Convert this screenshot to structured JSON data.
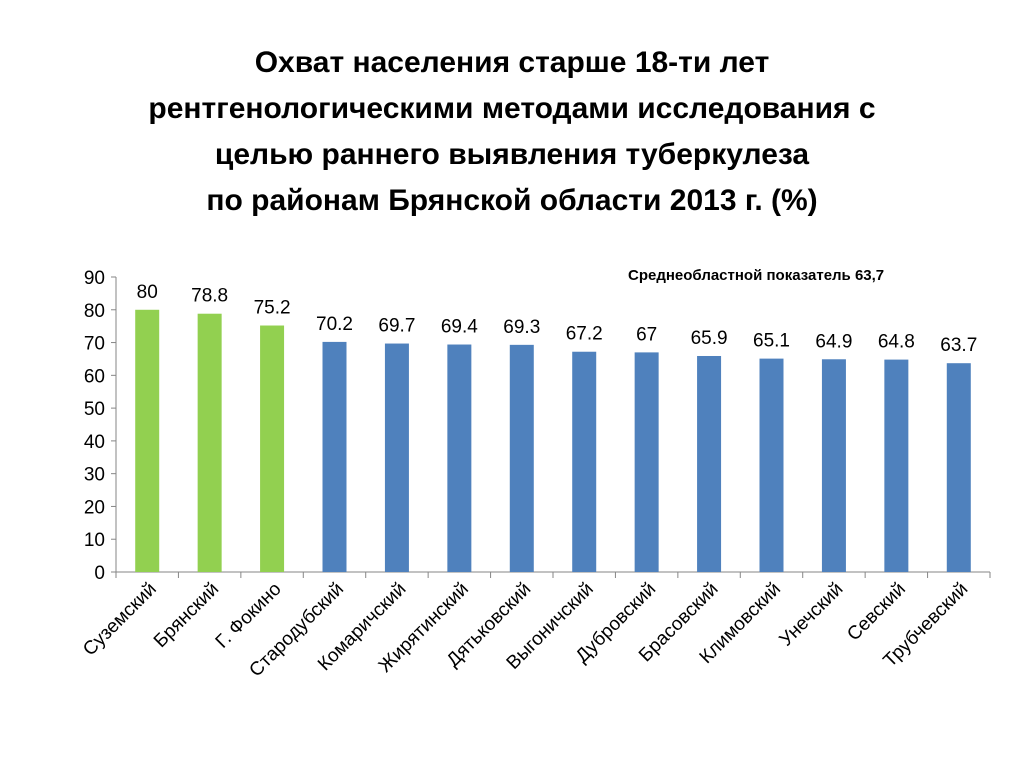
{
  "title_lines": [
    "Охват населения старше 18-ти лет",
    "рентгенологическими методами исследования с",
    "целью раннего выявления туберкулеза",
    "по районам Брянской области 2013 г. (%)"
  ],
  "note": "Среднеобластной показатель 63,7",
  "colors": {
    "above_avg": "#92d050",
    "default": "#4f81bd",
    "axis": "#868686"
  },
  "chart_data": {
    "type": "bar",
    "title": "Охват населения старше 18-ти лет рентгенологическими методами исследования с целью раннего выявления туберкулеза по районам Брянской области 2013 г. (%)",
    "categories": [
      "Суземский",
      "Брянский",
      "Г. Фокино",
      "Стародубский",
      "Комаричский",
      "Жирятинский",
      "Дятьковский",
      "Выгоничский",
      "Дубровский",
      "Брасовский",
      "Климовский",
      "Унечский",
      "Севский",
      "Трубчевский"
    ],
    "values": [
      80,
      78.8,
      75.2,
      70.2,
      69.7,
      69.4,
      69.3,
      67.2,
      67,
      65.9,
      65.1,
      64.9,
      64.8,
      63.7
    ],
    "data_labels": [
      "80",
      "78.8",
      "75.2",
      "70.2",
      "69.7",
      "69.4",
      "69.3",
      "67.2",
      "67",
      "65.9",
      "65.1",
      "64.9",
      "64.8",
      "63.7"
    ],
    "bar_colors": [
      "#92d050",
      "#92d050",
      "#92d050",
      "#4f81bd",
      "#4f81bd",
      "#4f81bd",
      "#4f81bd",
      "#4f81bd",
      "#4f81bd",
      "#4f81bd",
      "#4f81bd",
      "#4f81bd",
      "#4f81bd",
      "#4f81bd"
    ],
    "ylim": [
      0,
      90
    ],
    "yticks": [
      0,
      10,
      20,
      30,
      40,
      50,
      60,
      70,
      80,
      90
    ],
    "xlabel": "",
    "ylabel": "",
    "grid": false,
    "legend": "none"
  }
}
